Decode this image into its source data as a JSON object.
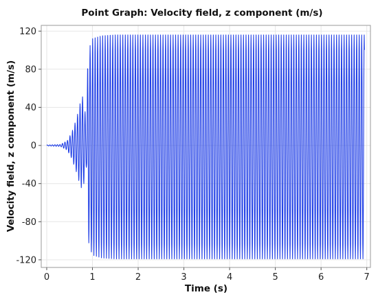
{
  "chart_data": {
    "type": "line",
    "title": "Point Graph: Velocity field, z component (m/s)",
    "xlabel": "Time (s)",
    "ylabel": "Velocity field, z component (m/s)",
    "xlim": [
      -0.12,
      7.08
    ],
    "ylim": [
      -128,
      126
    ],
    "xticks": [
      0,
      1,
      2,
      3,
      4,
      5,
      6,
      7
    ],
    "yticks": [
      -120,
      -80,
      -40,
      0,
      40,
      80,
      120
    ],
    "grid": true,
    "legend": "none",
    "color": "#1f3ee6",
    "series": [
      {
        "description": "oscillation envelope (approximate, read off chart)",
        "x": [
          0,
          0.3,
          0.45,
          0.55,
          0.65,
          0.72,
          0.77,
          0.8,
          0.84,
          0.87,
          0.9,
          0.95,
          1.0,
          1.2,
          1.5,
          2.0,
          3.0,
          4.0,
          5.0,
          6.0,
          6.95
        ],
        "upper": [
          0.5,
          1,
          5,
          14,
          28,
          42,
          52,
          50,
          35,
          18,
          97,
          105,
          112,
          115,
          116,
          116,
          116,
          116,
          116,
          116,
          116
        ],
        "lower": [
          -0.5,
          -1,
          -5,
          -14,
          -28,
          -40,
          -46,
          -44,
          -30,
          -22,
          -98,
          -108,
          -115,
          -118,
          -119,
          -119,
          -119,
          -119,
          -119,
          -119,
          -119
        ],
        "oscillation_period_s": 0.055
      }
    ]
  }
}
